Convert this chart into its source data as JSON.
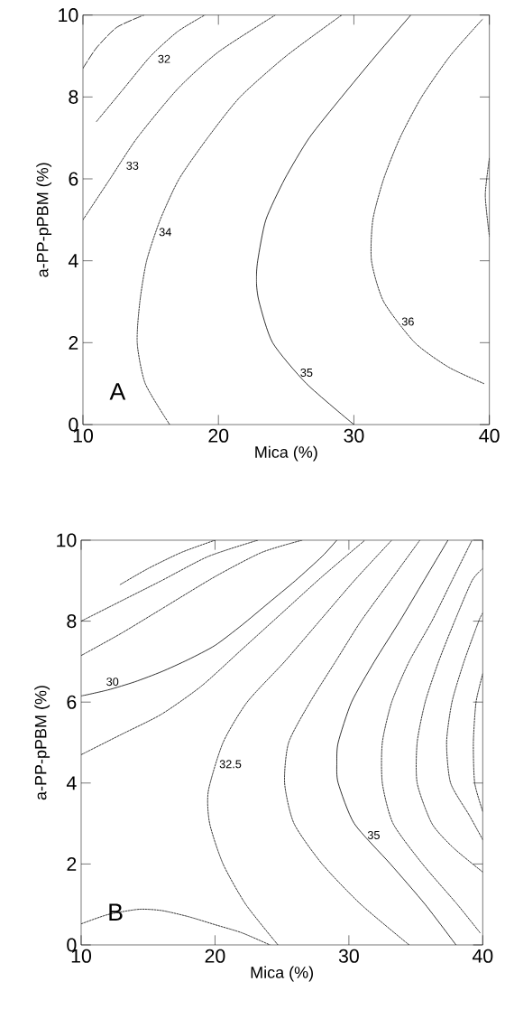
{
  "chart_data": [
    {
      "type": "line",
      "xlabel": "Mica (%)",
      "ylabel": "a-PP-pPBM (%)",
      "xlim": [
        10,
        40
      ],
      "ylim": [
        0,
        10
      ],
      "xticks": [
        10,
        20,
        30,
        40
      ],
      "yticks": [
        0,
        2,
        4,
        6,
        8,
        10
      ],
      "grid": false,
      "annotations": [
        "A"
      ],
      "series": [
        {
          "color": "#000000",
          "line_style": "dashed",
          "x": [
            10,
            11,
            12.5,
            14.5
          ],
          "values": [
            8.7,
            9.2,
            9.7,
            10
          ]
        },
        {
          "name": "32",
          "color": "#000000",
          "line_style": "dotted",
          "x": [
            11,
            13,
            15,
            17,
            19
          ],
          "values": [
            7.4,
            8.2,
            9.0,
            9.6,
            10
          ]
        },
        {
          "name": "33",
          "color": "#000000",
          "line_style": "dotted",
          "x": [
            10,
            12,
            14,
            17,
            20,
            24.2
          ],
          "values": [
            5.0,
            6.0,
            7.0,
            8.2,
            9.1,
            10
          ]
        },
        {
          "name": "34",
          "color": "#000000",
          "line_style": "dotted",
          "x": [
            16.4,
            14.6,
            14.0,
            14.2,
            14.7,
            15.7,
            17.1,
            19.2,
            21.6,
            25,
            29.1
          ],
          "values": [
            0,
            1,
            2,
            3,
            4,
            5,
            6,
            7,
            8,
            9,
            10
          ]
        },
        {
          "name": "35",
          "color": "#000000",
          "line_style": "solid",
          "x": [
            30,
            26.5,
            24,
            23,
            22.8,
            22.9,
            23.5,
            24.9,
            26.7,
            29.1,
            31.6,
            34.2
          ],
          "values": [
            0,
            1,
            2,
            3,
            3.5,
            4,
            5,
            6,
            7,
            8,
            9,
            10
          ]
        },
        {
          "name": "36",
          "color": "#000000",
          "line_style": "dotted",
          "x": [
            39.6,
            37,
            34.5,
            32.2,
            31.3,
            31.4,
            32.2,
            33.4,
            35,
            37.1,
            39.5
          ],
          "values": [
            1.0,
            1.4,
            2,
            3,
            4,
            5,
            6,
            7,
            8,
            9,
            9.9
          ]
        },
        {
          "color": "#000000",
          "line_style": "dotted",
          "x": [
            40,
            39.7,
            40
          ],
          "values": [
            6.5,
            5.6,
            4.6
          ]
        }
      ]
    },
    {
      "type": "line",
      "xlabel": "Mica (%)",
      "ylabel": "a-PP-pPBM (%)",
      "xlim": [
        10,
        40
      ],
      "ylim": [
        0,
        10
      ],
      "xticks": [
        10,
        20,
        30,
        40
      ],
      "yticks": [
        0,
        2,
        4,
        6,
        8,
        10
      ],
      "grid": false,
      "annotations": [
        "B"
      ],
      "series": [
        {
          "color": "#000000",
          "line_style": "dotted",
          "x": [
            12.9,
            15,
            17.5,
            20
          ],
          "values": [
            8.9,
            9.3,
            9.7,
            10
          ]
        },
        {
          "color": "#000000",
          "line_style": "dotted",
          "x": [
            10,
            13,
            16,
            19.5,
            23.2
          ],
          "values": [
            8.0,
            8.5,
            9.0,
            9.6,
            10
          ]
        },
        {
          "color": "#000000",
          "line_style": "dotted",
          "x": [
            10,
            13,
            16,
            20,
            23.5,
            26.5
          ],
          "values": [
            7.15,
            7.7,
            8.3,
            9.1,
            9.7,
            10
          ]
        },
        {
          "name": "30",
          "color": "#000000",
          "line_style": "solid",
          "x": [
            10,
            12,
            14,
            16,
            18,
            20,
            22,
            24,
            26,
            28,
            29.1
          ],
          "values": [
            6.15,
            6.3,
            6.5,
            6.75,
            7.05,
            7.4,
            7.9,
            8.45,
            9.0,
            9.6,
            10
          ]
        },
        {
          "color": "#000000",
          "line_style": "dotted",
          "x": [
            10,
            13,
            16,
            19,
            22,
            25,
            28,
            31.2
          ],
          "values": [
            4.7,
            5.2,
            5.7,
            6.4,
            7.3,
            8.2,
            9.1,
            10
          ]
        },
        {
          "name": "32.5",
          "color": "#000000",
          "line_style": "dotted",
          "x": [
            24.7,
            22.3,
            20.6,
            19.6,
            19.5,
            20.6,
            22.4,
            25.2,
            27.8,
            30.4,
            33.2
          ],
          "values": [
            0,
            1,
            2,
            3,
            3.8,
            5,
            6,
            7,
            8,
            9,
            10
          ]
        },
        {
          "color": "#000000",
          "line_style": "dotted",
          "x": [
            34.5,
            30.9,
            28.0,
            25.9,
            25.2,
            25.5,
            27.1,
            29.0,
            30.9,
            33.1,
            35.3
          ],
          "values": [
            0,
            1,
            2,
            3,
            4,
            5,
            6,
            7,
            8,
            9,
            10
          ]
        },
        {
          "name": "35",
          "color": "#000000",
          "line_style": "solid",
          "x": [
            38.0,
            35.7,
            33.1,
            30.4,
            29.2,
            29.1,
            29.2,
            30.2,
            31.9,
            33.8,
            35.6,
            37.4
          ],
          "values": [
            0,
            1,
            2,
            3,
            4,
            4.5,
            5,
            6,
            7,
            8,
            9,
            10
          ]
        },
        {
          "color": "#000000",
          "line_style": "dotted",
          "x": [
            39.8,
            38.1,
            35.5,
            33.3,
            32.5,
            32.5,
            33.2,
            34.5,
            36.2,
            37.7,
            39.2
          ],
          "values": [
            0.3,
            1,
            2,
            3,
            4,
            5,
            6,
            7,
            8,
            9,
            10
          ]
        },
        {
          "color": "#000000",
          "line_style": "dotted",
          "x": [
            40,
            37.8,
            36.2,
            35.1,
            35.1,
            35.7,
            36.7,
            37.9,
            39.2,
            40
          ],
          "values": [
            1.8,
            2.4,
            3,
            4,
            5,
            6,
            7,
            8,
            9,
            9.3
          ]
        },
        {
          "color": "#000000",
          "line_style": "dotted",
          "x": [
            40,
            39,
            37.6,
            37.3,
            37.7,
            38.6,
            39.7,
            40
          ],
          "values": [
            2.6,
            3.2,
            4,
            5,
            6,
            7,
            8,
            8.2
          ]
        },
        {
          "color": "#000000",
          "line_style": "dotted",
          "x": [
            40,
            39.4,
            39.3,
            39.5,
            40
          ],
          "values": [
            3.3,
            4,
            5,
            6,
            6.7
          ]
        },
        {
          "color": "#000000",
          "line_style": "dotted",
          "x": [
            10,
            12,
            14.3,
            16,
            18,
            20,
            22,
            24.1
          ],
          "values": [
            0.52,
            0.75,
            0.88,
            0.85,
            0.7,
            0.5,
            0.3,
            0
          ]
        }
      ]
    }
  ]
}
